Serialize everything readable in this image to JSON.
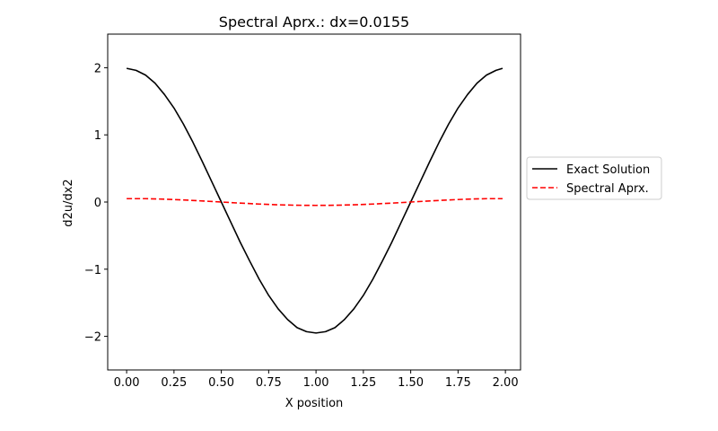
{
  "chart_data": {
    "type": "line",
    "title": "Spectral Aprx.: dx=0.0155",
    "xlabel": "X position",
    "ylabel": "d2u/dx2",
    "xlim": [
      -0.1,
      2.08
    ],
    "ylim": [
      -2.5,
      2.5
    ],
    "xticks": [
      0.0,
      0.25,
      0.5,
      0.75,
      1.0,
      1.25,
      1.5,
      1.75,
      2.0
    ],
    "xtick_labels": [
      "0.00",
      "0.25",
      "0.50",
      "0.75",
      "1.00",
      "1.25",
      "1.50",
      "1.75",
      "2.00"
    ],
    "yticks": [
      -2,
      -1,
      0,
      1,
      2
    ],
    "ytick_labels": [
      "−2",
      "−1",
      "0",
      "1",
      "2"
    ],
    "grid": false,
    "legend_position": "outside-right",
    "series": [
      {
        "name": "Exact Solution",
        "color": "#000000",
        "style": "solid",
        "x": [
          0.0,
          0.05,
          0.1,
          0.15,
          0.2,
          0.25,
          0.3,
          0.35,
          0.4,
          0.45,
          0.5,
          0.55,
          0.6,
          0.65,
          0.7,
          0.75,
          0.8,
          0.85,
          0.9,
          0.95,
          1.0,
          1.05,
          1.1,
          1.15,
          1.2,
          1.25,
          1.3,
          1.35,
          1.4,
          1.45,
          1.5,
          1.55,
          1.6,
          1.65,
          1.7,
          1.75,
          1.8,
          1.85,
          1.9,
          1.95,
          1.985
        ],
        "y": [
          1.99,
          1.96,
          1.89,
          1.77,
          1.6,
          1.4,
          1.16,
          0.89,
          0.6,
          0.3,
          0.0,
          -0.3,
          -0.6,
          -0.88,
          -1.15,
          -1.39,
          -1.59,
          -1.75,
          -1.87,
          -1.93,
          -1.95,
          -1.93,
          -1.87,
          -1.75,
          -1.59,
          -1.39,
          -1.15,
          -0.88,
          -0.6,
          -0.3,
          0.0,
          0.3,
          0.6,
          0.89,
          1.16,
          1.4,
          1.6,
          1.77,
          1.89,
          1.96,
          1.99
        ]
      },
      {
        "name": "Spectral Aprx.",
        "color": "#ff0000",
        "style": "dashed",
        "x": [
          0.0,
          0.1,
          0.2,
          0.3,
          0.4,
          0.5,
          0.6,
          0.7,
          0.8,
          0.9,
          1.0,
          1.1,
          1.2,
          1.3,
          1.4,
          1.5,
          1.6,
          1.7,
          1.8,
          1.9,
          1.985
        ],
        "y": [
          0.05,
          0.05,
          0.043,
          0.031,
          0.016,
          0.0,
          -0.016,
          -0.03,
          -0.041,
          -0.048,
          -0.05,
          -0.048,
          -0.041,
          -0.03,
          -0.016,
          0.0,
          0.016,
          0.031,
          0.043,
          0.05,
          0.05
        ]
      }
    ]
  }
}
